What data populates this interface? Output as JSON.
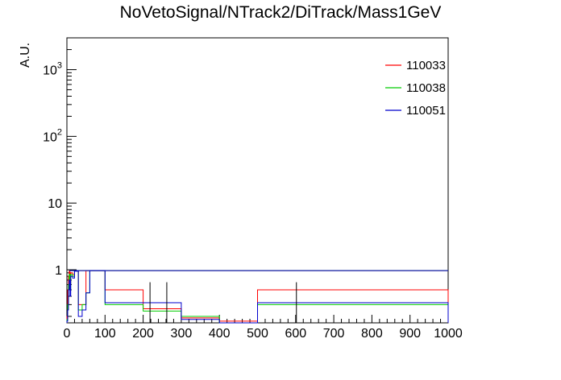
{
  "chart_data": {
    "type": "line",
    "title": "NoVetoSignal/NTrack2/DiTrack/Mass1GeV",
    "xlabel": "",
    "ylabel": "A.U.",
    "xlim": [
      0,
      1000
    ],
    "ylim": [
      0.16,
      3000
    ],
    "yscale": "log",
    "grid": false,
    "legend_position": "top-right",
    "x_ticks": [
      0,
      100,
      200,
      300,
      400,
      500,
      600,
      700,
      800,
      900,
      1000
    ],
    "y_ticks": [
      {
        "value": 1,
        "base": "1",
        "exp": ""
      },
      {
        "value": 10,
        "base": "10",
        "exp": ""
      },
      {
        "value": 100,
        "base": "10",
        "exp": "2"
      },
      {
        "value": 1000,
        "base": "10",
        "exp": "3"
      }
    ],
    "series": [
      {
        "name": "110033",
        "color": "#ff0000",
        "x": [
          0,
          2,
          4,
          6,
          8,
          10,
          15,
          20,
          30,
          40,
          50,
          60,
          80,
          100,
          200,
          300,
          400,
          500,
          1000
        ],
        "values": [
          0.2,
          0.5,
          0.8,
          0.95,
          0.6,
          0.9,
          0.85,
          0.97,
          0.3,
          0.3,
          0.97,
          0.97,
          0.97,
          0.5,
          0.26,
          0.19,
          0.17,
          0.5,
          0.5
        ]
      },
      {
        "name": "110038",
        "color": "#00cc00",
        "x": [
          0,
          2,
          4,
          6,
          8,
          10,
          15,
          20,
          30,
          40,
          50,
          60,
          80,
          100,
          200,
          300,
          400,
          500,
          1000
        ],
        "values": [
          0.18,
          0.3,
          0.6,
          0.85,
          0.5,
          0.85,
          0.8,
          0.96,
          0.25,
          0.3,
          0.45,
          0.97,
          0.97,
          0.3,
          0.24,
          0.2,
          0.16,
          0.3,
          0.3
        ]
      },
      {
        "name": "110051",
        "color": "#0000cc",
        "x": [
          0,
          2,
          4,
          6,
          8,
          10,
          15,
          20,
          30,
          40,
          50,
          60,
          80,
          100,
          200,
          300,
          400,
          500,
          1000
        ],
        "values": [
          0.17,
          0.25,
          0.5,
          0.7,
          0.4,
          0.8,
          0.75,
          0.95,
          0.2,
          0.25,
          0.45,
          0.97,
          0.97,
          0.32,
          0.32,
          0.18,
          0.16,
          0.32,
          0.32
        ]
      }
    ],
    "error_bars": [
      {
        "x": 218,
        "low": 0.16,
        "high": 0.65
      },
      {
        "x": 262,
        "low": 0.16,
        "high": 0.65
      },
      {
        "x": 602,
        "low": 0.16,
        "high": 0.65
      }
    ]
  }
}
